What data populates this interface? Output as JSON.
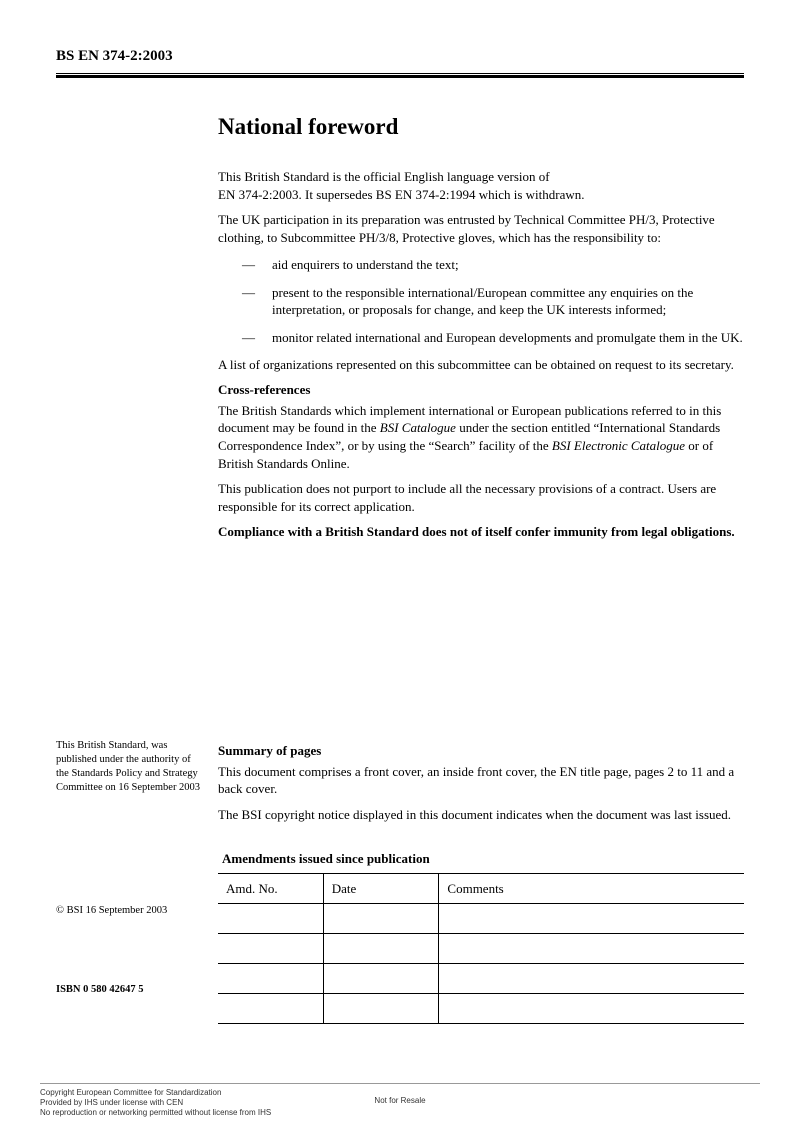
{
  "header": {
    "code": "BS EN 374-2:2003"
  },
  "title": "National foreword",
  "paragraphs": {
    "p1a": "This British Standard is the official English language version of",
    "p1b": "EN 374-2:2003. It supersedes BS EN 374-2:1994 which is withdrawn.",
    "p2": "The UK participation in its preparation was entrusted by Technical Committee PH/3, Protective clothing, to Subcommittee PH/3/8, Protective gloves, which has the responsibility to:",
    "p3": "A list of organizations represented on this subcommittee can be obtained on request to its secretary.",
    "p4a": "The British Standards which implement international or European publications referred to in this document may be found in the ",
    "p4b": "BSI Catalogue",
    "p4c": " under the section entitled “International Standards Correspondence Index”, or by using the “Search” facility of the ",
    "p4d": "BSI Electronic Catalogue",
    "p4e": " or of British Standards Online.",
    "p5": "This publication does not purport to include all the necessary provisions of a contract. Users are responsible for its correct application.",
    "p6": "Compliance with a British Standard does not of itself confer immunity from legal obligations."
  },
  "list": {
    "marker": "—",
    "items": [
      "aid enquirers to understand the text;",
      "present to the responsible international/European committee any enquiries on the interpretation, or proposals for change, and keep the UK interests informed;",
      "monitor related international and European developments and promulgate them in the UK."
    ]
  },
  "cross_ref_heading": "Cross-references",
  "sidenote": "This British Standard, was published under the authority of the Standards Policy and Strategy Committee on 16 September 2003",
  "copyright": "© BSI 16 September 2003",
  "isbn": "ISBN 0 580 42647 5",
  "summary": {
    "heading": "Summary of pages",
    "p1": "This document comprises a front cover, an inside front cover, the EN title page, pages 2 to 11 and a back cover.",
    "p2": "The BSI copyright notice displayed in this document indicates when the document was last issued."
  },
  "amendments": {
    "title": "Amendments issued since publication",
    "columns": [
      "Amd. No.",
      "Date",
      "Comments"
    ],
    "rows": [
      [
        "",
        "",
        ""
      ],
      [
        "",
        "",
        ""
      ],
      [
        "",
        "",
        ""
      ],
      [
        "",
        "",
        ""
      ]
    ]
  },
  "footer": {
    "line1": "Copyright European Committee for Standardization",
    "line2": "Provided by IHS under license with CEN",
    "line3": "No reproduction or networking permitted without license from IHS",
    "center": "Not for Resale"
  }
}
